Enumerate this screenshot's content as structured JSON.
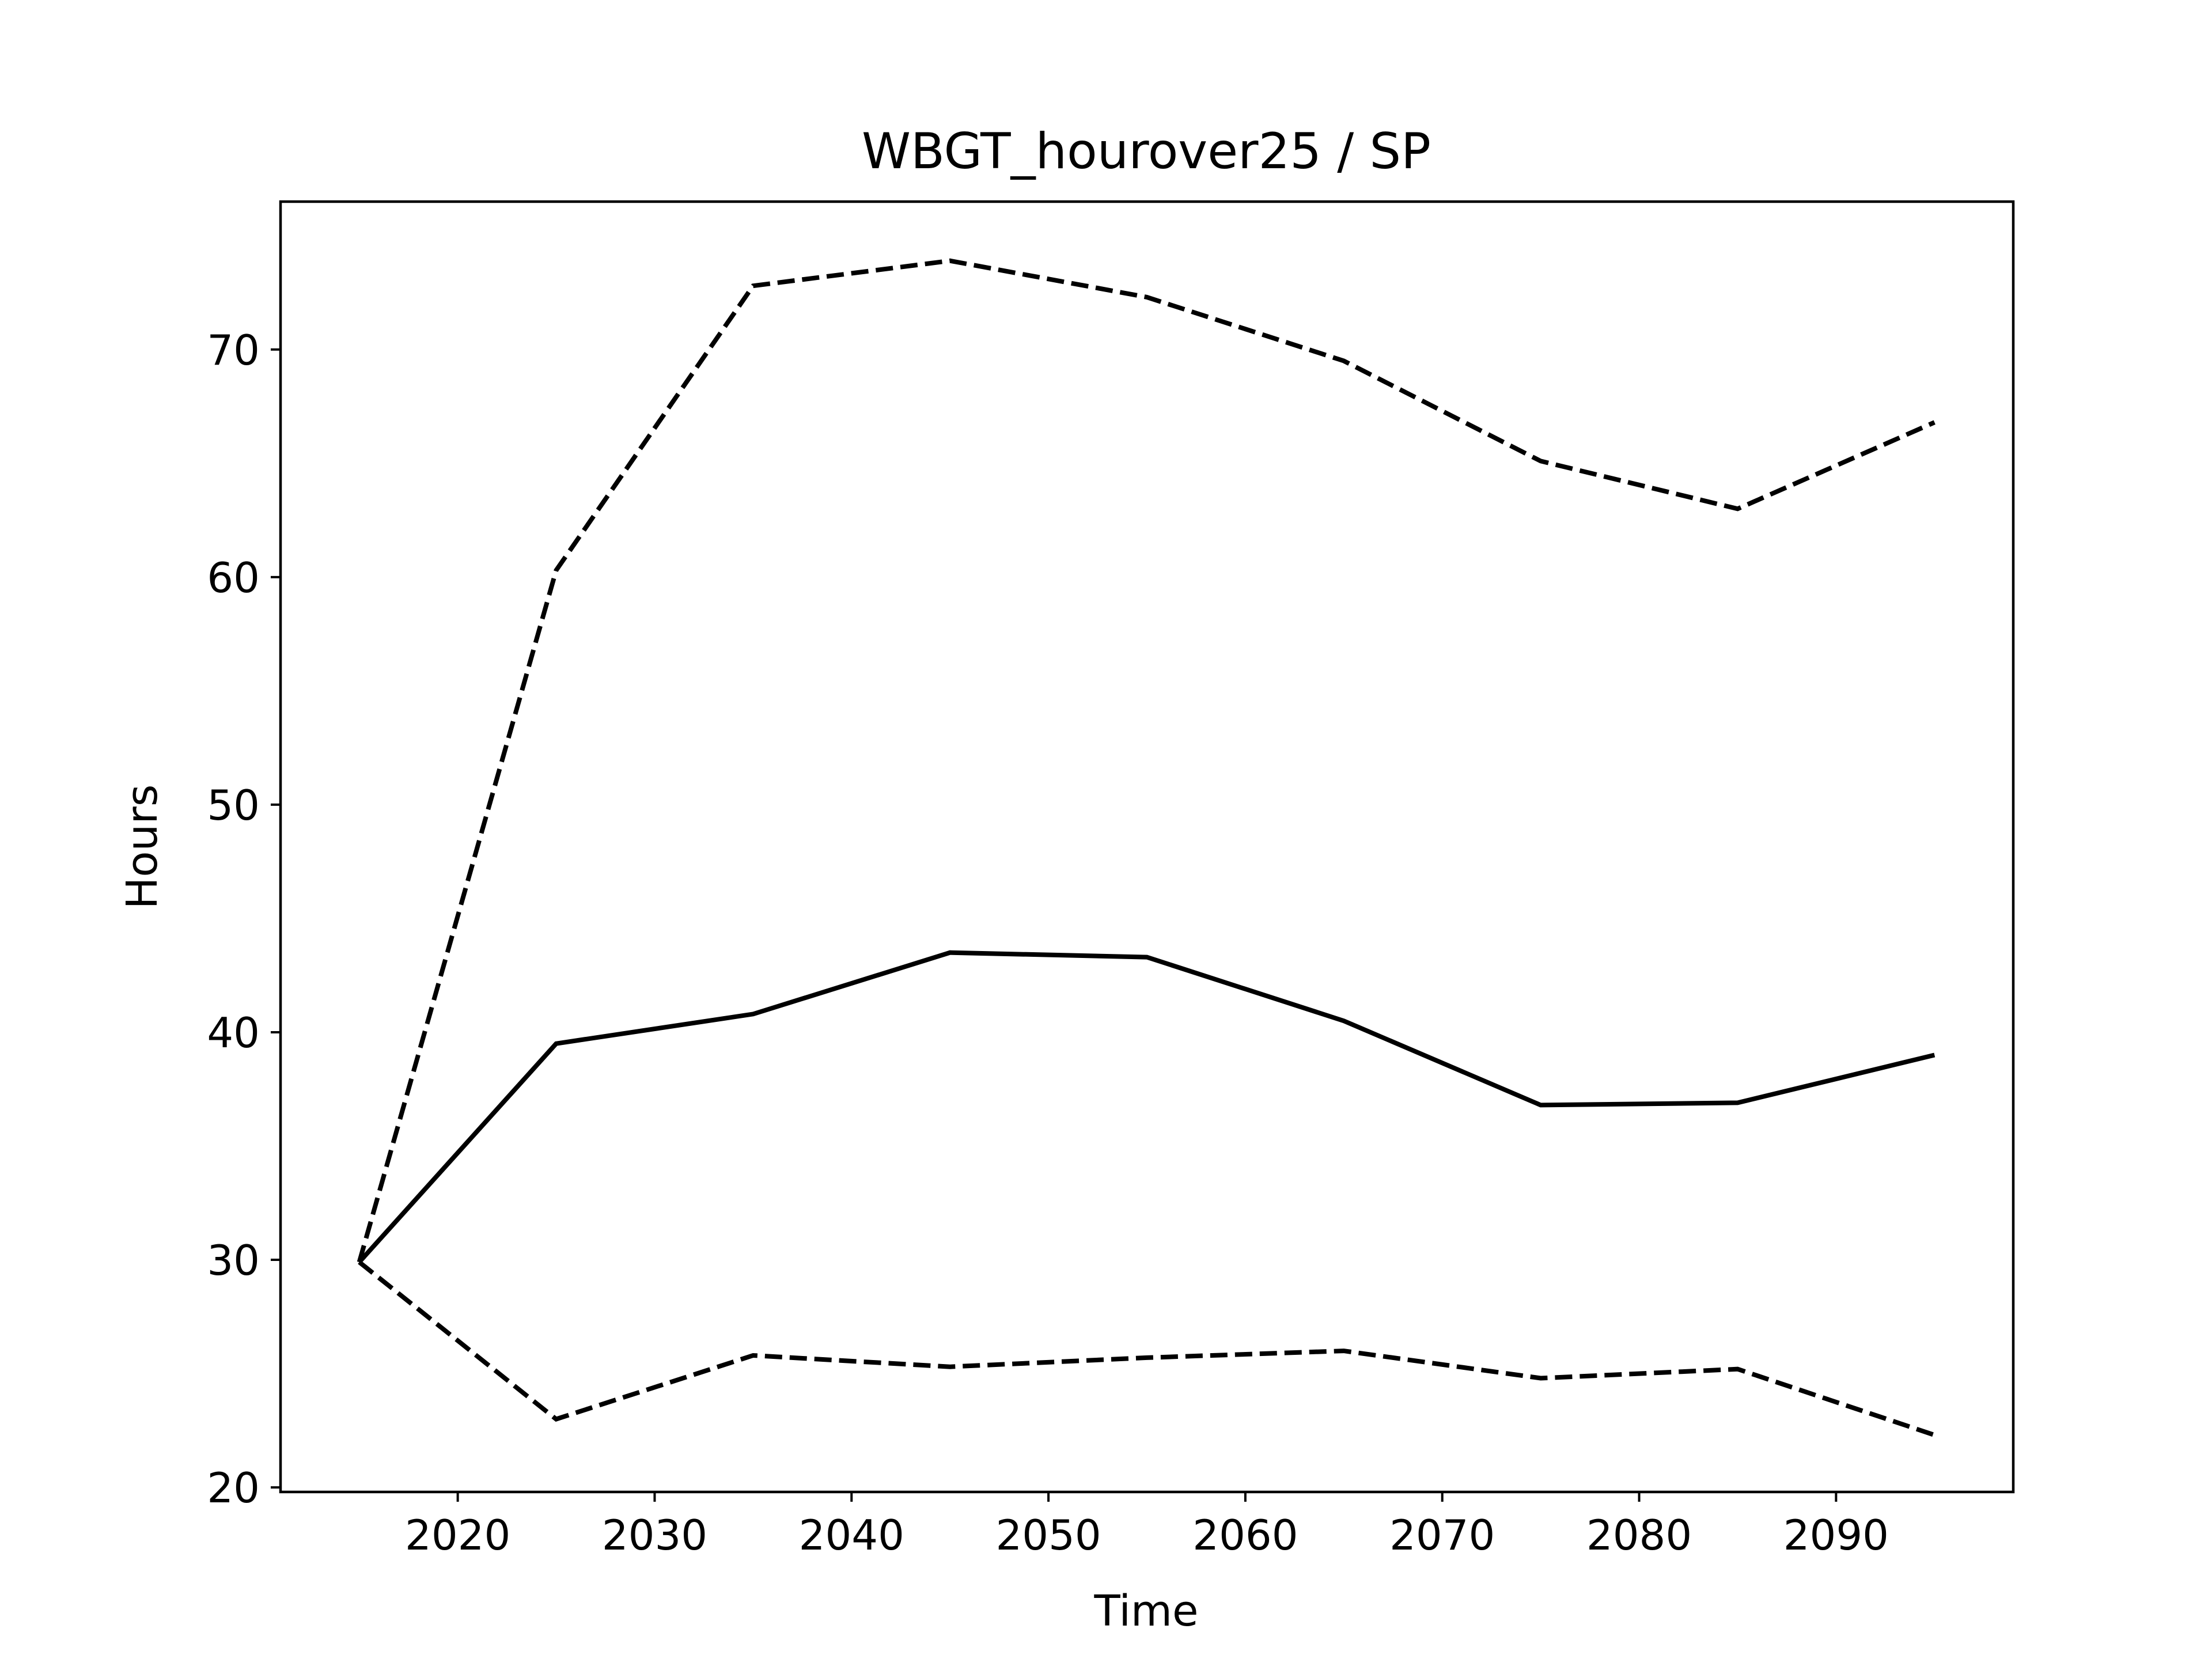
{
  "chart_data": {
    "type": "line",
    "title": "WBGT_hourover25 / SP",
    "xlabel": "Time",
    "ylabel": "Hours",
    "x": [
      2015,
      2025,
      2035,
      2045,
      2055,
      2065,
      2075,
      2085,
      2095
    ],
    "xlim": [
      2011,
      2099
    ],
    "ylim": [
      19.8,
      76.5
    ],
    "xticks": [
      2020,
      2030,
      2040,
      2050,
      2060,
      2070,
      2080,
      2090
    ],
    "yticks": [
      20,
      30,
      40,
      50,
      60,
      70
    ],
    "grid": false,
    "legend": "none",
    "series": [
      {
        "style": "solid",
        "color": "#000000",
        "values": [
          29.9,
          39.5,
          40.8,
          43.5,
          43.3,
          40.5,
          36.8,
          36.9,
          39.0
        ]
      },
      {
        "style": "dashed",
        "color": "#000000",
        "values": [
          29.9,
          60.3,
          72.8,
          73.9,
          72.3,
          69.5,
          65.1,
          63.0,
          66.8
        ]
      },
      {
        "style": "dashed",
        "color": "#000000",
        "values": [
          29.9,
          23.0,
          25.8,
          25.3,
          25.7,
          26.0,
          24.8,
          25.2,
          22.3
        ]
      }
    ]
  }
}
